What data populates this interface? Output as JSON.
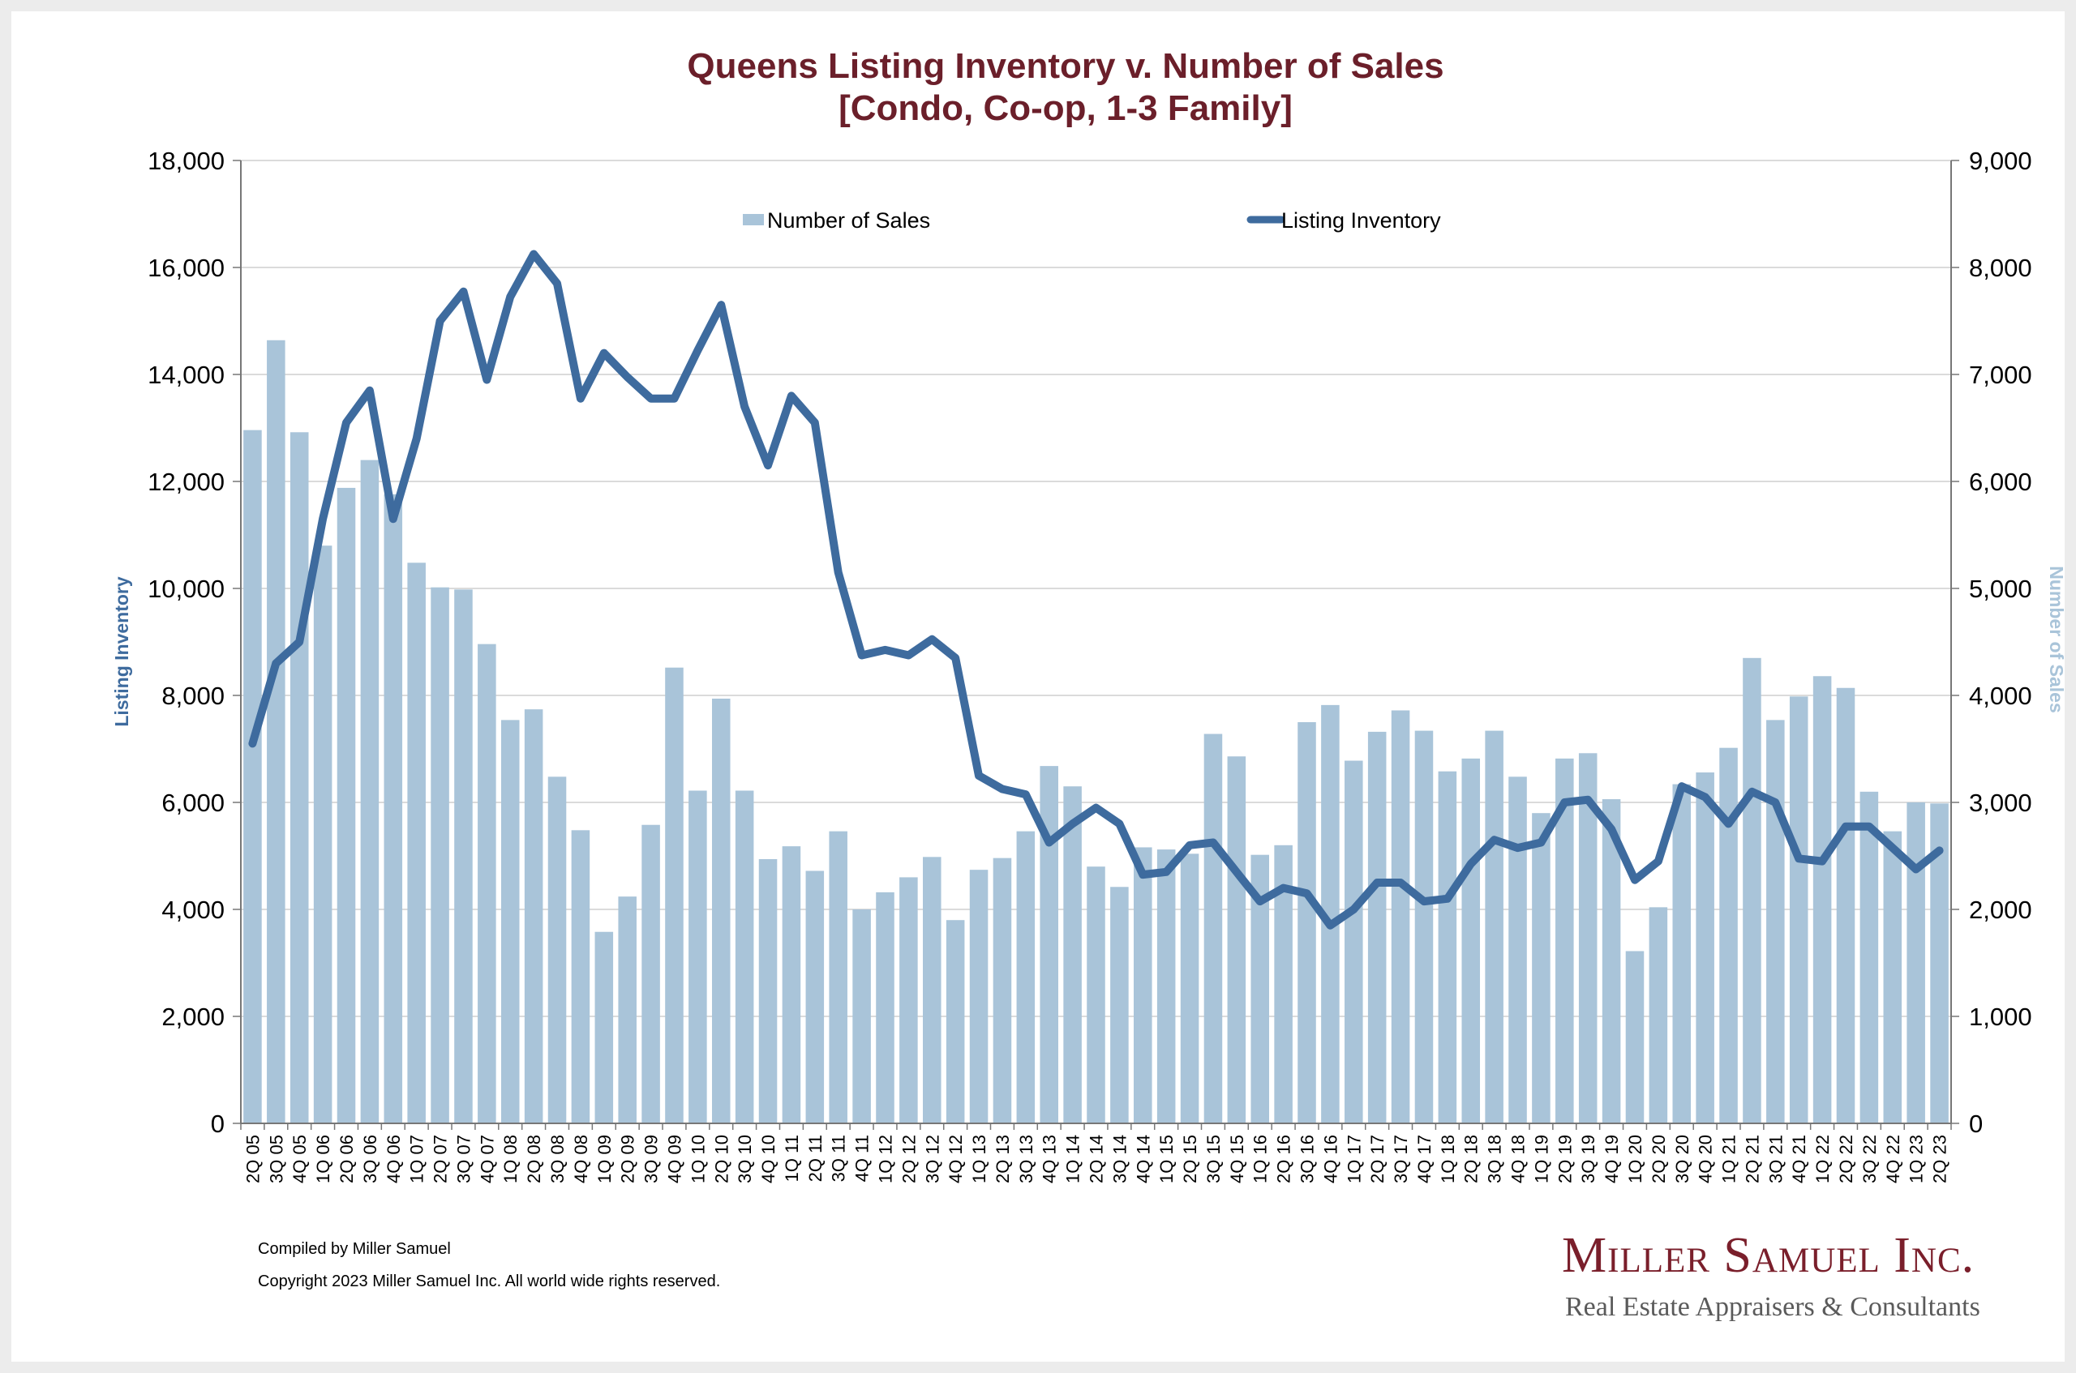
{
  "footer": {
    "compiled": "Compiled by Miller Samuel",
    "copyright": "Copyright 2023 Miller Samuel Inc.  All world wide rights reserved."
  },
  "brand": {
    "name": "Miller Samuel Inc.",
    "tagline": "Real Estate Appraisers & Consultants"
  },
  "colors": {
    "bars": "#a9c4d9",
    "line": "#3e6b9e",
    "title": "#6b1f2a",
    "grid": "#cfcfcf"
  },
  "chart_data": {
    "type": "bar",
    "title": "Queens Listing Inventory v. Number of Sales",
    "subtitle": "[Condo, Co-op, 1-3 Family]",
    "ylabel": "Listing Inventory",
    "y2label": "Number of Sales",
    "ylim": [
      0,
      18000
    ],
    "y2lim": [
      0,
      9000
    ],
    "yticks": [
      "0",
      "2,000",
      "4,000",
      "6,000",
      "8,000",
      "10,000",
      "12,000",
      "14,000",
      "16,000",
      "18,000"
    ],
    "y2ticks": [
      "0",
      "1,000",
      "2,000",
      "3,000",
      "4,000",
      "5,000",
      "6,000",
      "7,000",
      "8,000",
      "9,000"
    ],
    "grid": true,
    "legend_position": "top",
    "categories": [
      "2Q 05",
      "3Q 05",
      "4Q 05",
      "1Q 06",
      "2Q 06",
      "3Q 06",
      "4Q 06",
      "1Q 07",
      "2Q 07",
      "3Q 07",
      "4Q 07",
      "1Q 08",
      "2Q 08",
      "3Q 08",
      "4Q 08",
      "1Q 09",
      "2Q 09",
      "3Q 09",
      "4Q 09",
      "1Q 10",
      "2Q 10",
      "3Q 10",
      "4Q 10",
      "1Q 11",
      "2Q 11",
      "3Q 11",
      "4Q 11",
      "1Q 12",
      "2Q 12",
      "3Q 12",
      "4Q 12",
      "1Q 13",
      "2Q 13",
      "3Q 13",
      "4Q 13",
      "1Q 14",
      "2Q 14",
      "3Q 14",
      "4Q 14",
      "1Q 15",
      "2Q 15",
      "3Q 15",
      "4Q 15",
      "1Q 16",
      "2Q 16",
      "3Q 16",
      "4Q 16",
      "1Q 17",
      "2Q 17",
      "3Q 17",
      "4Q 17",
      "1Q 18",
      "2Q 18",
      "3Q 18",
      "4Q 18",
      "1Q 19",
      "2Q 19",
      "3Q 19",
      "4Q 19",
      "1Q 20",
      "2Q 20",
      "3Q 20",
      "4Q 20",
      "1Q 21",
      "2Q 21",
      "3Q 21",
      "4Q 21",
      "1Q 22",
      "2Q 22",
      "3Q 22",
      "4Q 22",
      "1Q 23",
      "2Q 23"
    ],
    "series": [
      {
        "name": "Number of Sales",
        "type": "bar",
        "axis": "right",
        "values": [
          6480,
          7320,
          6460,
          5400,
          5940,
          6200,
          5880,
          5240,
          5010,
          4990,
          4480,
          3770,
          3870,
          3240,
          2740,
          1790,
          2120,
          2790,
          4260,
          3110,
          3970,
          3110,
          2470,
          2590,
          2360,
          2730,
          2000,
          2160,
          2300,
          2490,
          1900,
          2370,
          2480,
          2730,
          3340,
          3150,
          2400,
          2210,
          2580,
          2560,
          2520,
          3640,
          3430,
          2510,
          2600,
          3750,
          3910,
          3390,
          3660,
          3860,
          3670,
          3290,
          3410,
          3670,
          3240,
          2900,
          3410,
          3460,
          3030,
          1610,
          2020,
          3170,
          3280,
          3510,
          4350,
          3770,
          3990,
          4180,
          4070,
          3100,
          2730,
          3000,
          2990
        ]
      },
      {
        "name": "Listing Inventory",
        "type": "line",
        "axis": "left",
        "values": [
          7100,
          8600,
          9000,
          11300,
          13100,
          13700,
          11300,
          12800,
          15000,
          15550,
          13900,
          15450,
          16250,
          15700,
          13550,
          14400,
          13950,
          13550,
          13550,
          14450,
          15300,
          13400,
          12300,
          13600,
          13100,
          10300,
          8750,
          8850,
          8750,
          9050,
          8700,
          6500,
          6250,
          6150,
          5250,
          5600,
          5900,
          5600,
          4650,
          4700,
          5200,
          5250,
          4700,
          4150,
          4400,
          4300,
          3700,
          4000,
          4500,
          4500,
          4150,
          4200,
          4850,
          5300,
          5150,
          5250,
          6000,
          6050,
          5500,
          4550,
          4900,
          6300,
          6100,
          5600,
          6200,
          6000,
          4950,
          4900,
          5550,
          5550,
          5150,
          4750,
          5100
        ]
      }
    ]
  }
}
